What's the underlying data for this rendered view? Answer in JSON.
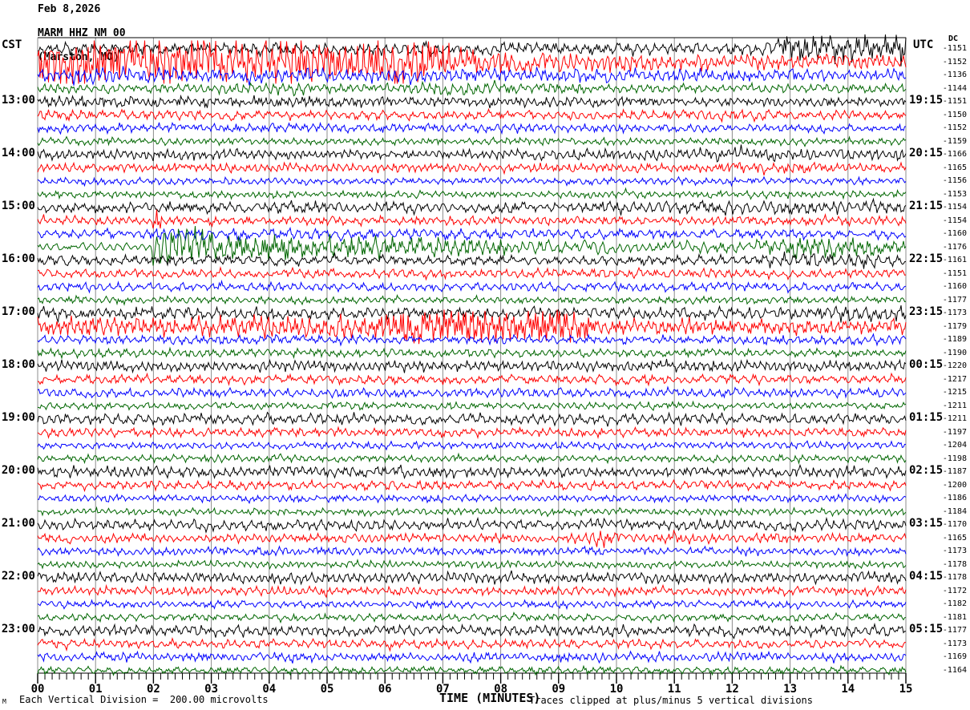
{
  "header": {
    "date": "Feb 8,2026",
    "station": "MARM HHZ NM 00",
    "location": "(Marston, MO)"
  },
  "left_axis": {
    "label": "CST"
  },
  "right_axis": {
    "label": "UTC",
    "dc_label": "DC"
  },
  "x_axis": {
    "label": "TIME (MINUTES)",
    "ticks": [
      "00",
      "01",
      "02",
      "03",
      "04",
      "05",
      "06",
      "07",
      "08",
      "09",
      "10",
      "11",
      "12",
      "13",
      "14",
      "15"
    ]
  },
  "footer": {
    "logo": "M",
    "scale_note": "Each Vertical Division =  200.00 microvolts",
    "clip_note": "Traces clipped at plus/minus 5 vertical divisions"
  },
  "colors": {
    "black": "#000000",
    "red": "#ff0000",
    "blue": "#0000ff",
    "green": "#006600",
    "grid": "#8c8c8c",
    "frame": "#000000"
  },
  "chart_data": {
    "type": "line",
    "title": "MARM HHZ NM 00 (Marston, MO) helicorder, Feb 8,2026",
    "xlabel": "TIME (MINUTES)",
    "x_range_minutes": [
      0,
      15
    ],
    "minutes_per_row": 15,
    "rows_per_hour": 4,
    "clip_note_divisions": 5,
    "microvolts_per_division": 200.0,
    "traces": [
      {
        "color": "black",
        "cst": null,
        "utc": null,
        "dc": -1151,
        "env": [
          [
            0,
            7
          ],
          [
            5,
            6.5
          ],
          [
            9,
            7
          ],
          [
            12.6,
            7
          ],
          [
            12.9,
            13
          ],
          [
            15,
            14
          ]
        ]
      },
      {
        "color": "red",
        "cst": null,
        "utc": null,
        "dc": -1152,
        "env": [
          [
            0,
            24
          ],
          [
            3,
            25
          ],
          [
            6.6,
            24
          ],
          [
            7.3,
            13
          ],
          [
            9,
            11
          ],
          [
            12,
            9
          ],
          [
            15,
            8
          ]
        ]
      },
      {
        "color": "blue",
        "cst": null,
        "utc": null,
        "dc": -1136,
        "env": [
          [
            0,
            9
          ],
          [
            4,
            8
          ],
          [
            8,
            8
          ],
          [
            12,
            7
          ],
          [
            15,
            7
          ]
        ]
      },
      {
        "color": "green",
        "cst": null,
        "utc": null,
        "dc": -1144,
        "env": [
          [
            0,
            5
          ],
          [
            3.6,
            6
          ],
          [
            4.4,
            8
          ],
          [
            5.4,
            5
          ],
          [
            7.6,
            8
          ],
          [
            9.8,
            5
          ],
          [
            15,
            5
          ]
        ]
      },
      {
        "color": "black",
        "cst": "13:00",
        "utc": "19:15",
        "dc": -1151,
        "env": [
          [
            0,
            7
          ],
          [
            3,
            6
          ],
          [
            7,
            6
          ],
          [
            11,
            5
          ],
          [
            15,
            5
          ]
        ]
      },
      {
        "color": "red",
        "cst": null,
        "utc": null,
        "dc": -1150,
        "env": [
          [
            0,
            6
          ],
          [
            4,
            5
          ],
          [
            9,
            5
          ],
          [
            12,
            6
          ],
          [
            15,
            5
          ]
        ]
      },
      {
        "color": "blue",
        "cst": null,
        "utc": null,
        "dc": -1152,
        "env": [
          [
            0,
            5
          ],
          [
            7,
            5
          ],
          [
            15,
            4
          ]
        ]
      },
      {
        "color": "green",
        "cst": null,
        "utc": null,
        "dc": -1159,
        "env": [
          [
            0,
            4
          ],
          [
            15,
            4
          ]
        ]
      },
      {
        "color": "black",
        "cst": "14:00",
        "utc": "20:15",
        "dc": -1166,
        "env": [
          [
            0,
            6
          ],
          [
            6,
            5
          ],
          [
            10,
            6
          ],
          [
            12.5,
            8
          ],
          [
            13.5,
            6
          ],
          [
            15,
            6
          ]
        ]
      },
      {
        "color": "red",
        "cst": null,
        "utc": null,
        "dc": -1165,
        "env": [
          [
            0,
            5
          ],
          [
            11.5,
            5
          ],
          [
            12,
            7
          ],
          [
            13,
            7
          ],
          [
            13.5,
            5
          ],
          [
            15,
            5
          ]
        ]
      },
      {
        "color": "blue",
        "cst": null,
        "utc": null,
        "dc": -1156,
        "env": [
          [
            0,
            4
          ],
          [
            15,
            4
          ]
        ]
      },
      {
        "color": "green",
        "cst": null,
        "utc": null,
        "dc": -1153,
        "env": [
          [
            0,
            4
          ],
          [
            15,
            4
          ]
        ]
      },
      {
        "color": "black",
        "cst": "15:00",
        "utc": "21:15",
        "dc": -1154,
        "env": [
          [
            0,
            6
          ],
          [
            9,
            6
          ],
          [
            10.5,
            7
          ],
          [
            12.5,
            8
          ],
          [
            15,
            7
          ]
        ]
      },
      {
        "color": "red",
        "cst": null,
        "utc": null,
        "dc": -1154,
        "env": [
          [
            0,
            5
          ],
          [
            1.95,
            5
          ],
          [
            2.05,
            15
          ],
          [
            2.2,
            5
          ],
          [
            15,
            5
          ]
        ]
      },
      {
        "color": "blue",
        "cst": null,
        "utc": null,
        "dc": -1160,
        "env": [
          [
            0,
            5
          ],
          [
            2.0,
            5
          ],
          [
            2.1,
            9
          ],
          [
            2.5,
            6
          ],
          [
            15,
            5
          ]
        ]
      },
      {
        "color": "green",
        "cst": null,
        "utc": null,
        "dc": -1176,
        "env": [
          [
            0,
            5
          ],
          [
            1.9,
            5
          ],
          [
            2.0,
            27
          ],
          [
            2.5,
            24
          ],
          [
            3.2,
            15
          ],
          [
            4.5,
            12
          ],
          [
            6.5,
            11
          ],
          [
            8.5,
            9
          ],
          [
            10.5,
            7
          ],
          [
            12.4,
            7
          ],
          [
            12.8,
            12
          ],
          [
            14.0,
            11
          ],
          [
            14.5,
            8
          ],
          [
            15,
            7
          ]
        ]
      },
      {
        "color": "black",
        "cst": "16:00",
        "utc": "22:15",
        "dc": -1161,
        "env": [
          [
            0,
            6
          ],
          [
            6,
            5
          ],
          [
            12.5,
            6
          ],
          [
            12.9,
            9
          ],
          [
            14.2,
            9
          ],
          [
            15,
            7
          ]
        ]
      },
      {
        "color": "red",
        "cst": null,
        "utc": null,
        "dc": -1151,
        "env": [
          [
            0,
            5
          ],
          [
            15,
            5
          ]
        ]
      },
      {
        "color": "blue",
        "cst": null,
        "utc": null,
        "dc": -1160,
        "env": [
          [
            0,
            5
          ],
          [
            15,
            5
          ]
        ]
      },
      {
        "color": "green",
        "cst": null,
        "utc": null,
        "dc": -1177,
        "env": [
          [
            0,
            4
          ],
          [
            15,
            4
          ]
        ]
      },
      {
        "color": "black",
        "cst": "17:00",
        "utc": "23:15",
        "dc": -1173,
        "env": [
          [
            0,
            7
          ],
          [
            8,
            6
          ],
          [
            13.4,
            7
          ],
          [
            13.8,
            10
          ],
          [
            15,
            10
          ]
        ]
      },
      {
        "color": "red",
        "cst": null,
        "utc": null,
        "dc": -1179,
        "env": [
          [
            0,
            10
          ],
          [
            0.4,
            12
          ],
          [
            3,
            11
          ],
          [
            5.8,
            12
          ],
          [
            6.3,
            17
          ],
          [
            7.5,
            16
          ],
          [
            9.3,
            15
          ],
          [
            9.8,
            9
          ],
          [
            12,
            8
          ],
          [
            15,
            8
          ]
        ]
      },
      {
        "color": "blue",
        "cst": null,
        "utc": null,
        "dc": -1189,
        "env": [
          [
            0,
            5
          ],
          [
            15,
            5
          ]
        ]
      },
      {
        "color": "green",
        "cst": null,
        "utc": null,
        "dc": -1190,
        "env": [
          [
            0,
            5
          ],
          [
            15,
            4
          ]
        ]
      },
      {
        "color": "black",
        "cst": "18:00",
        "utc": "00:15",
        "dc": -1220,
        "env": [
          [
            0,
            6
          ],
          [
            15,
            6
          ]
        ]
      },
      {
        "color": "red",
        "cst": null,
        "utc": null,
        "dc": -1217,
        "env": [
          [
            0,
            5
          ],
          [
            15,
            5
          ]
        ]
      },
      {
        "color": "blue",
        "cst": null,
        "utc": null,
        "dc": -1215,
        "env": [
          [
            0,
            5
          ],
          [
            15,
            5
          ]
        ]
      },
      {
        "color": "green",
        "cst": null,
        "utc": null,
        "dc": -1211,
        "env": [
          [
            0,
            4
          ],
          [
            15,
            4
          ]
        ]
      },
      {
        "color": "black",
        "cst": "19:00",
        "utc": "01:15",
        "dc": -1211,
        "env": [
          [
            0,
            6
          ],
          [
            15,
            6
          ]
        ]
      },
      {
        "color": "red",
        "cst": null,
        "utc": null,
        "dc": -1197,
        "env": [
          [
            0,
            5
          ],
          [
            15,
            5
          ]
        ]
      },
      {
        "color": "blue",
        "cst": null,
        "utc": null,
        "dc": -1204,
        "env": [
          [
            0,
            4
          ],
          [
            15,
            4
          ]
        ]
      },
      {
        "color": "green",
        "cst": null,
        "utc": null,
        "dc": -1198,
        "env": [
          [
            0,
            4
          ],
          [
            15,
            4
          ]
        ]
      },
      {
        "color": "black",
        "cst": "20:00",
        "utc": "02:15",
        "dc": -1187,
        "env": [
          [
            0,
            6
          ],
          [
            15,
            6
          ]
        ]
      },
      {
        "color": "red",
        "cst": null,
        "utc": null,
        "dc": -1200,
        "env": [
          [
            0,
            5
          ],
          [
            15,
            5
          ]
        ]
      },
      {
        "color": "blue",
        "cst": null,
        "utc": null,
        "dc": -1186,
        "env": [
          [
            0,
            4
          ],
          [
            15,
            4
          ]
        ]
      },
      {
        "color": "green",
        "cst": null,
        "utc": null,
        "dc": -1184,
        "env": [
          [
            0,
            4
          ],
          [
            15,
            4
          ]
        ]
      },
      {
        "color": "black",
        "cst": "21:00",
        "utc": "03:15",
        "dc": -1170,
        "env": [
          [
            0,
            6
          ],
          [
            15,
            6
          ]
        ]
      },
      {
        "color": "red",
        "cst": null,
        "utc": null,
        "dc": -1165,
        "env": [
          [
            0,
            5
          ],
          [
            9.4,
            5
          ],
          [
            9.7,
            9
          ],
          [
            10.3,
            6
          ],
          [
            15,
            5
          ]
        ]
      },
      {
        "color": "blue",
        "cst": null,
        "utc": null,
        "dc": -1173,
        "env": [
          [
            0,
            4
          ],
          [
            5,
            5
          ],
          [
            15,
            4
          ]
        ]
      },
      {
        "color": "green",
        "cst": null,
        "utc": null,
        "dc": -1178,
        "env": [
          [
            0,
            4
          ],
          [
            15,
            4
          ]
        ]
      },
      {
        "color": "black",
        "cst": "22:00",
        "utc": "04:15",
        "dc": -1178,
        "env": [
          [
            0,
            6
          ],
          [
            15,
            6
          ]
        ]
      },
      {
        "color": "red",
        "cst": null,
        "utc": null,
        "dc": -1172,
        "env": [
          [
            0,
            5
          ],
          [
            15,
            5
          ]
        ]
      },
      {
        "color": "blue",
        "cst": null,
        "utc": null,
        "dc": -1182,
        "env": [
          [
            0,
            4
          ],
          [
            15,
            4
          ]
        ]
      },
      {
        "color": "green",
        "cst": null,
        "utc": null,
        "dc": -1181,
        "env": [
          [
            0,
            4
          ],
          [
            15,
            4
          ]
        ]
      },
      {
        "color": "black",
        "cst": "23:00",
        "utc": "05:15",
        "dc": -1177,
        "env": [
          [
            0,
            6
          ],
          [
            15,
            6
          ]
        ]
      },
      {
        "color": "red",
        "cst": null,
        "utc": null,
        "dc": -1173,
        "env": [
          [
            0,
            5
          ],
          [
            15,
            5
          ]
        ]
      },
      {
        "color": "blue",
        "cst": null,
        "utc": null,
        "dc": -1169,
        "env": [
          [
            0,
            5
          ],
          [
            15,
            5
          ]
        ]
      },
      {
        "color": "green",
        "cst": null,
        "utc": null,
        "dc": -1164,
        "env": [
          [
            0,
            4
          ],
          [
            15,
            4
          ]
        ]
      }
    ]
  }
}
